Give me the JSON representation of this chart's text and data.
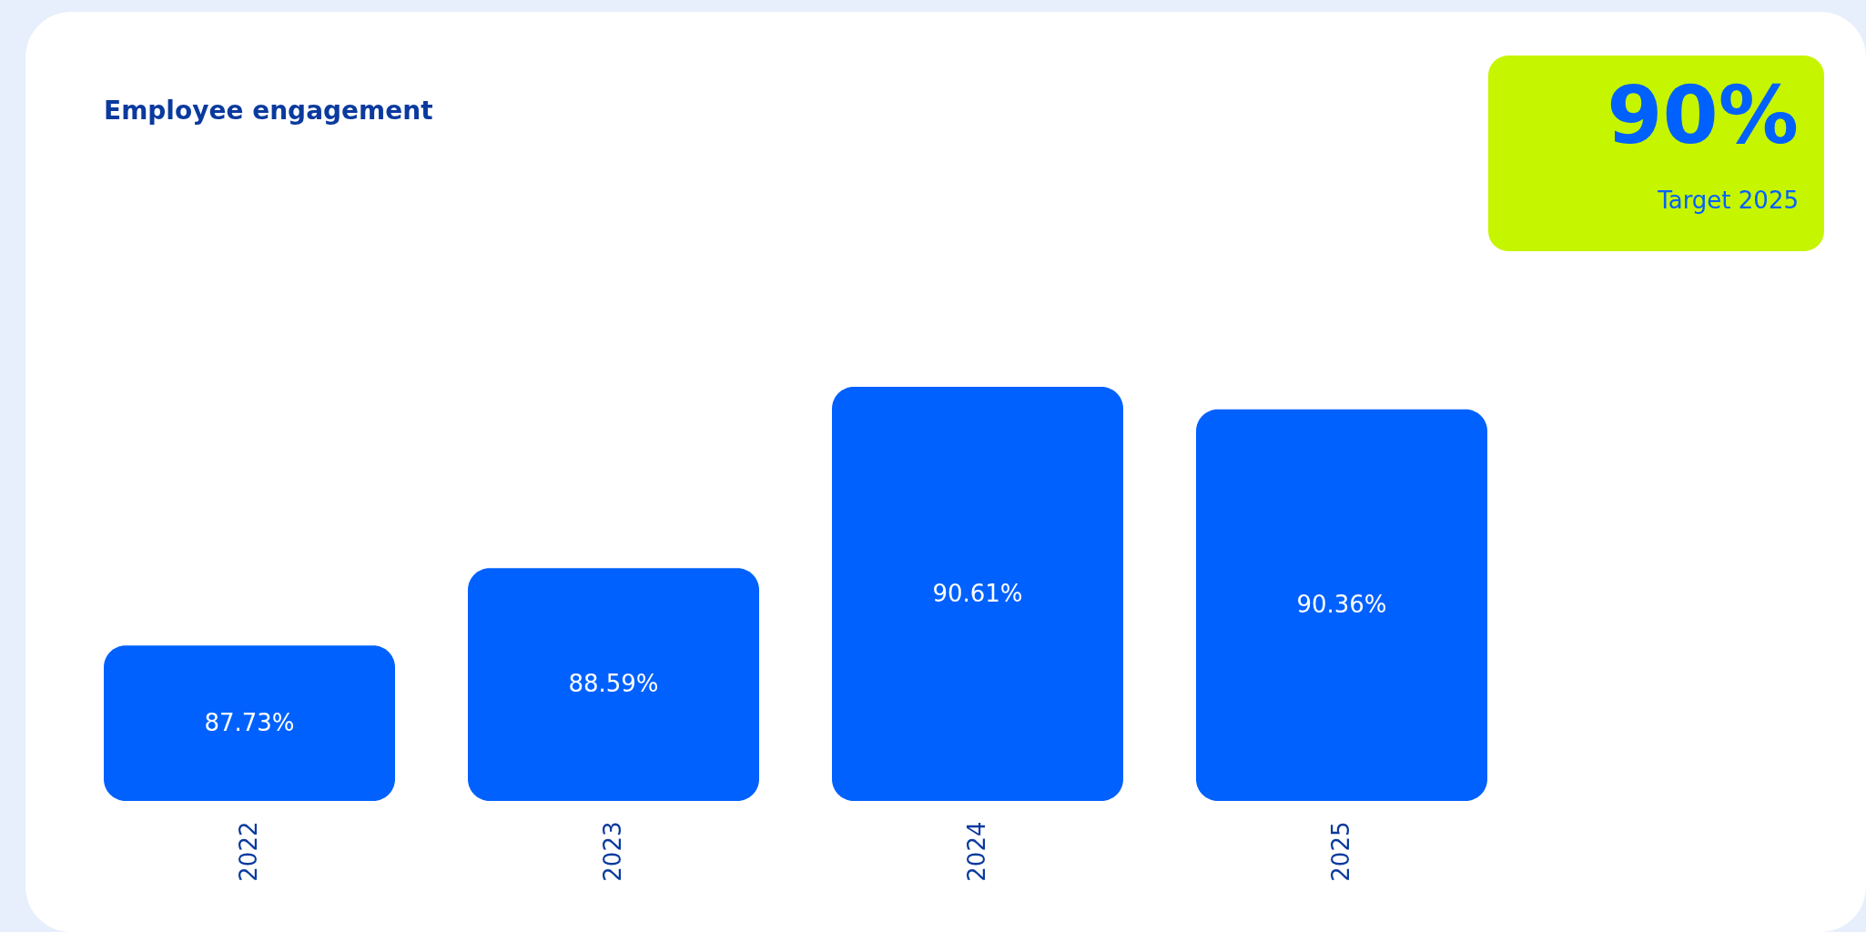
{
  "chart_data": {
    "type": "bar",
    "title": "Employee engagement",
    "categories": [
      "2022",
      "2023",
      "2024",
      "2025"
    ],
    "values": [
      87.73,
      88.59,
      90.61,
      90.36
    ],
    "value_labels": [
      "87.73%",
      "88.59%",
      "90.61%",
      "90.36%"
    ],
    "color": "#0061fe",
    "ylim": [
      86,
      90.61
    ],
    "tick_labels": "x",
    "annotations": [
      "90%",
      "Target 2025"
    ]
  }
}
